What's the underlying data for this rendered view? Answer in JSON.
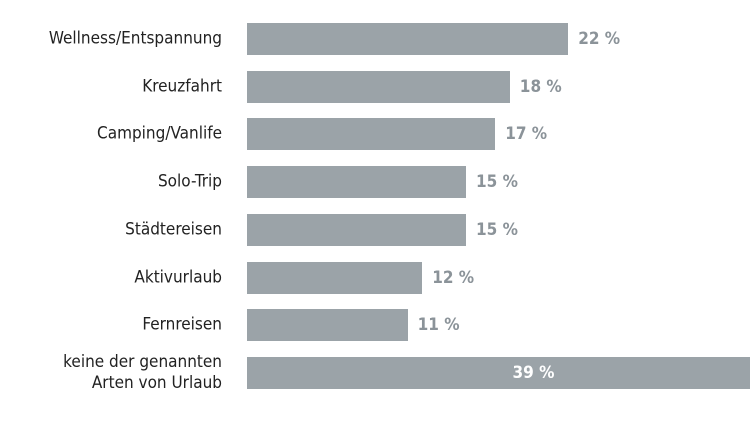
{
  "chart_data": {
    "type": "bar",
    "orientation": "horizontal",
    "categories": [
      "Wellness/Entspannung",
      "Kreuzfahrt",
      "Camping/Vanlife",
      "Solo-Trip",
      "Städtereisen",
      "Aktivurlaub",
      "Fernreisen",
      "keine der genannten\nArten von Urlaub"
    ],
    "values": [
      22,
      18,
      17,
      15,
      15,
      12,
      11,
      39
    ],
    "value_labels": [
      "22 %",
      "18 %",
      "17 %",
      "15 %",
      "15 %",
      "12 %",
      "11 %",
      "39 %"
    ],
    "color": "#9ba3a8"
  }
}
